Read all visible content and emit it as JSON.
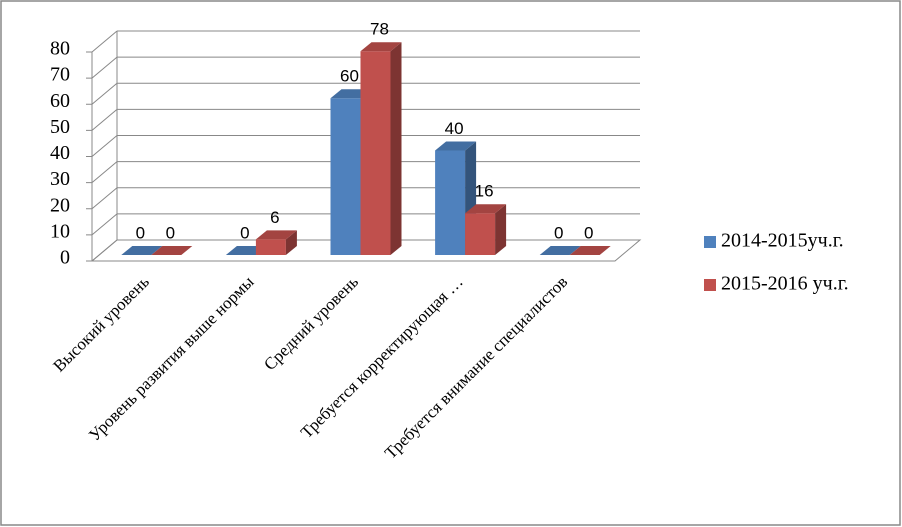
{
  "chart_data": {
    "type": "bar3d",
    "categories": [
      "Высокий уровень",
      "Уровень развития выше нормы",
      "Средний уровень",
      "Требуется  корректирующая …",
      "Требуется  внимание специалистов"
    ],
    "series": [
      {
        "name": "2014-2015уч.г.",
        "color": "#4f81bd",
        "values": [
          0,
          0,
          60,
          40,
          0
        ]
      },
      {
        "name": "2015-2016  уч.г.",
        "color": "#c0504d",
        "values": [
          0,
          6,
          78,
          16,
          0
        ]
      }
    ],
    "ylim": [
      0,
      80
    ],
    "yticks": [
      0,
      10,
      20,
      30,
      40,
      50,
      60,
      70,
      80
    ],
    "grid": true,
    "legend": "right"
  }
}
